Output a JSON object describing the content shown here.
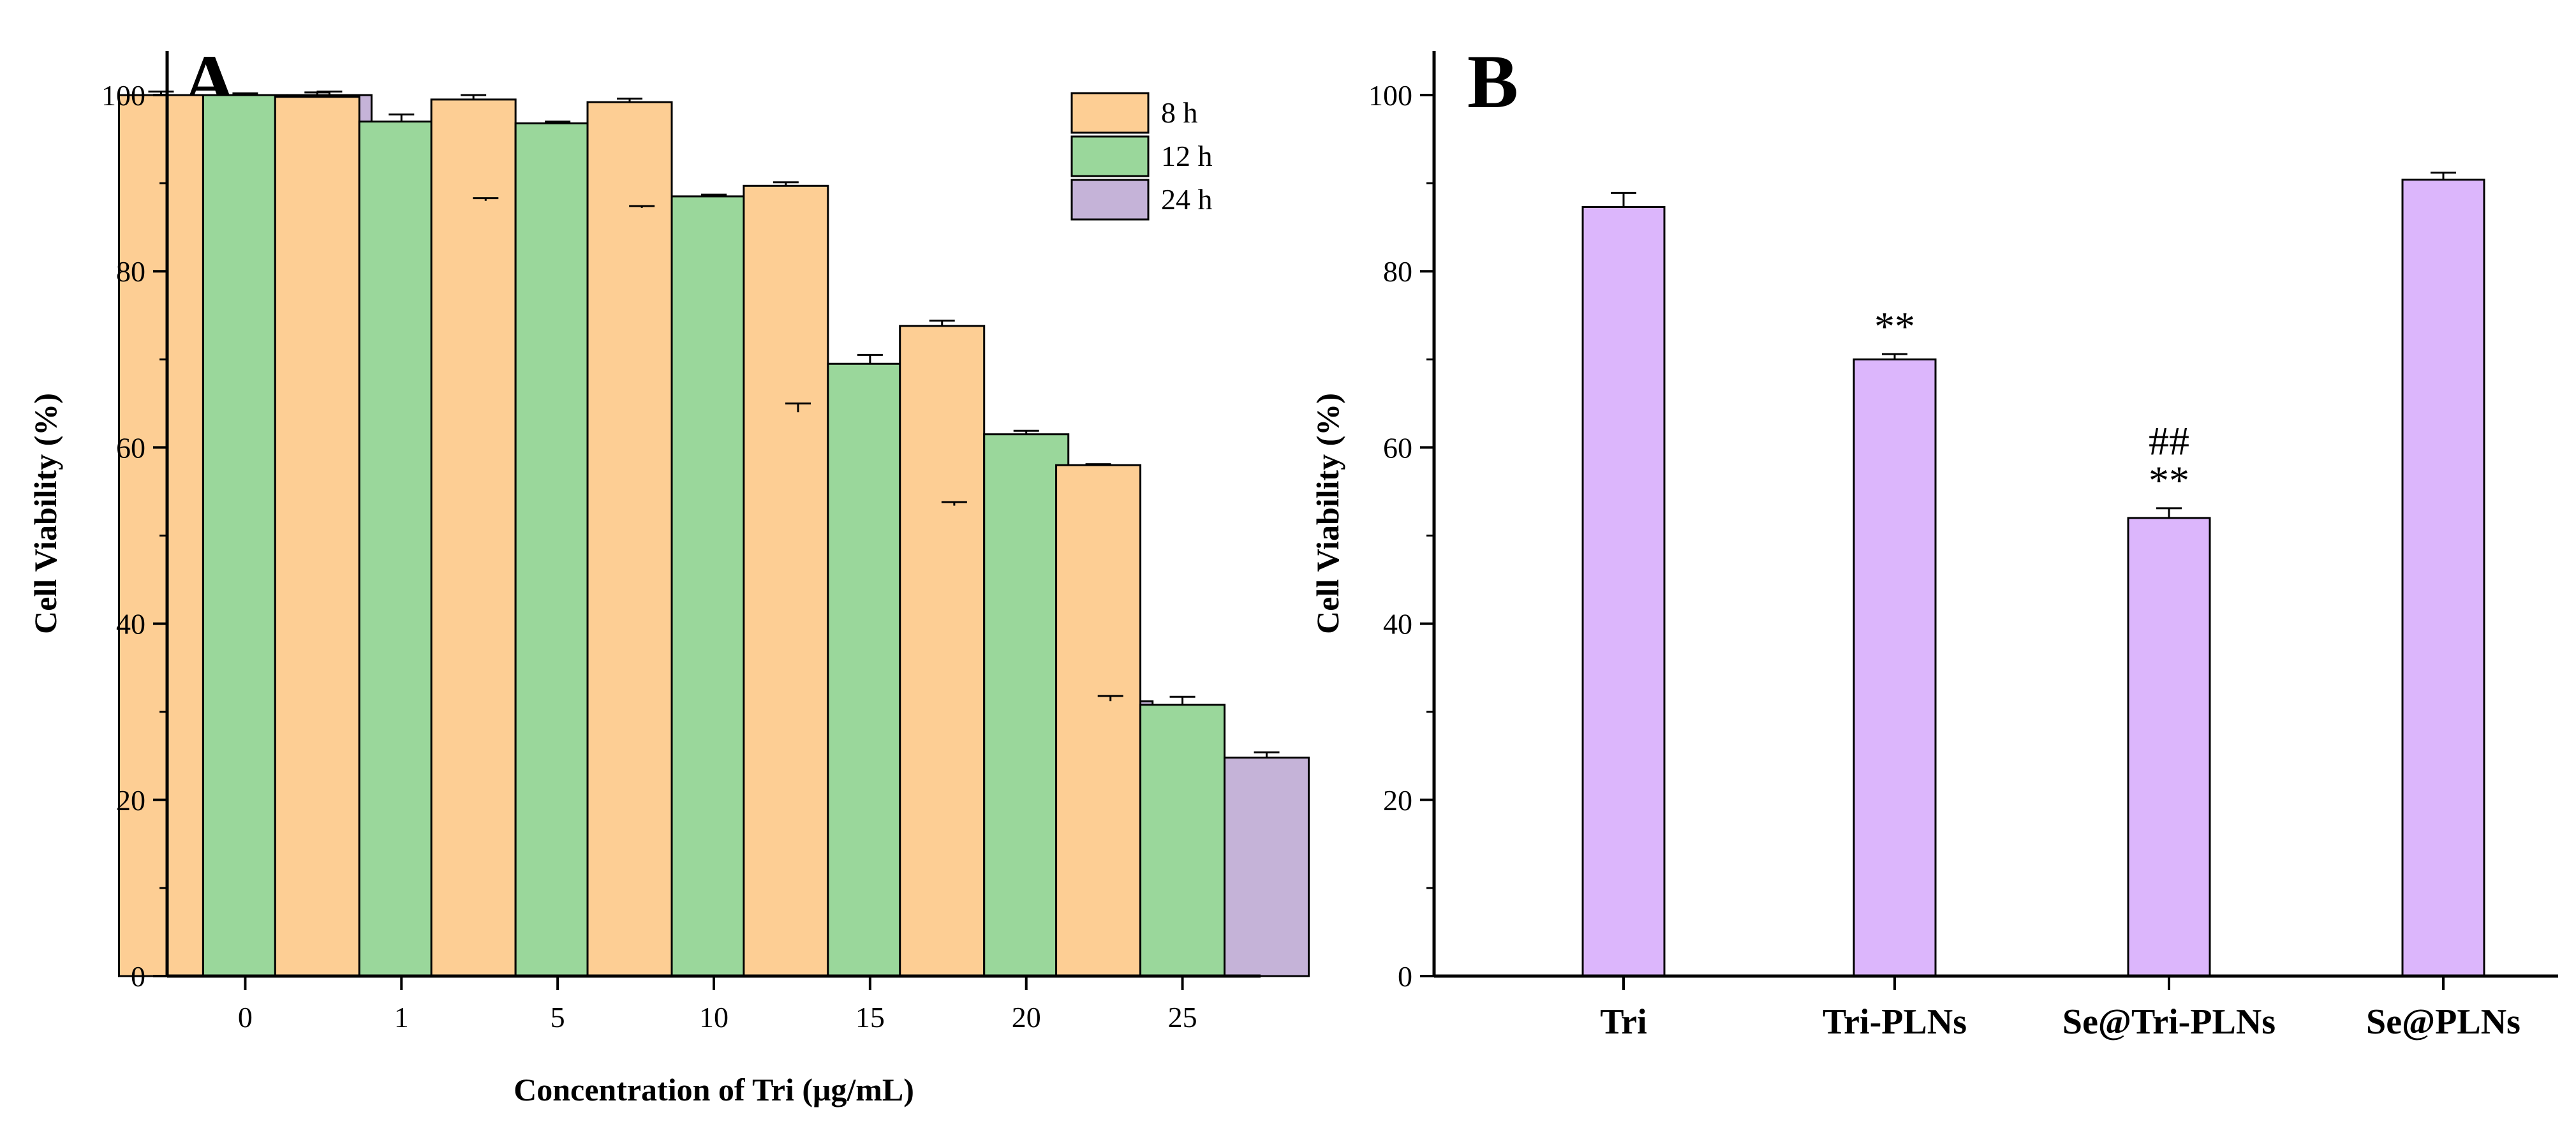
{
  "colors": {
    "8h": "#FDCE94",
    "12h": "#9AD79B",
    "24h": "#C5B3D8",
    "panel_b": "#DCB6FC",
    "stroke": "#000000"
  },
  "chart_data": [
    {
      "panel": "A",
      "type": "bar",
      "title": "",
      "xlabel": "Concentration of Tri (μg/mL)",
      "ylabel": "Cell Viability (%)",
      "ylim": [
        0,
        105
      ],
      "yticks": [
        0,
        20,
        40,
        60,
        80,
        100
      ],
      "grid": false,
      "legend_position": "top-right",
      "categories": [
        "0",
        "1",
        "5",
        "10",
        "15",
        "20",
        "25"
      ],
      "series": [
        {
          "name": "8 h",
          "color_key": "8h",
          "values": [
            100.0,
            99.8,
            99.5,
            99.2,
            89.7,
            73.8,
            58.0
          ],
          "errors": [
            0.4,
            0.5,
            0.5,
            0.4,
            0.4,
            0.6,
            0.1
          ]
        },
        {
          "name": "12 h",
          "color_key": "12h",
          "values": [
            100.0,
            97.0,
            96.8,
            88.5,
            69.5,
            61.5,
            30.8
          ],
          "errors": [
            0.2,
            0.8,
            0.2,
            0.2,
            1.0,
            0.4,
            0.9
          ]
        },
        {
          "name": "24 h",
          "color_key": "24h",
          "values": [
            100.0,
            88.0,
            87.2,
            64.0,
            53.4,
            31.2,
            24.8
          ],
          "errors": [
            0.4,
            0.3,
            0.2,
            1.0,
            0.4,
            0.6,
            0.6
          ]
        }
      ]
    },
    {
      "panel": "B",
      "type": "bar",
      "title": "",
      "xlabel": "",
      "ylabel": "Cell Viability (%)",
      "ylim": [
        0,
        105
      ],
      "yticks": [
        0,
        20,
        40,
        60,
        80,
        100
      ],
      "grid": false,
      "categories": [
        "Tri",
        "Tri-PLNs",
        "Se@Tri-PLNs",
        "Se@PLNs"
      ],
      "values": [
        87.3,
        70.0,
        52.0,
        90.4
      ],
      "errors": [
        1.6,
        0.6,
        1.1,
        0.8
      ],
      "annotations": [
        {
          "category": "Tri-PLNs",
          "lines": [
            "**"
          ]
        },
        {
          "category": "Se@Tri-PLNs",
          "lines": [
            "##",
            "**"
          ]
        }
      ]
    }
  ]
}
